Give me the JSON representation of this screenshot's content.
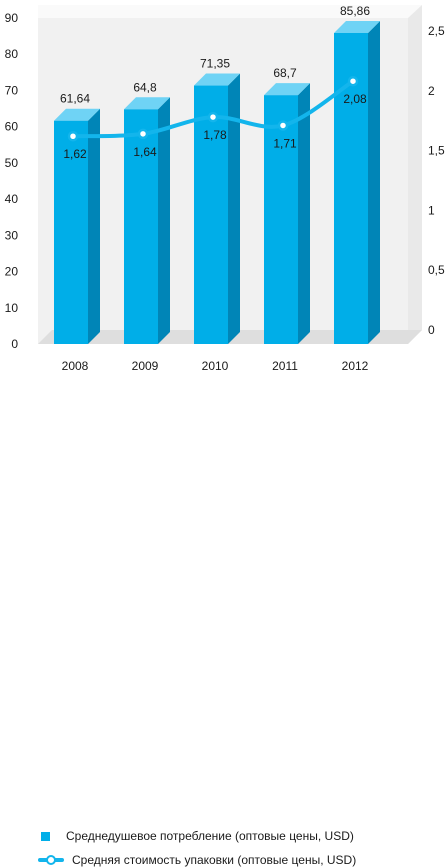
{
  "chart_data": {
    "type": "bar",
    "categories": [
      "2008",
      "2009",
      "2010",
      "2011",
      "2012"
    ],
    "series": [
      {
        "name": "Среднедушевое потребление (оптовые цены, USD)",
        "type": "bar",
        "axis": "left",
        "values": [
          61.64,
          64.8,
          71.35,
          68.7,
          85.86
        ],
        "labels": [
          "61,64",
          "64,8",
          "71,35",
          "68,7",
          "85,86"
        ]
      },
      {
        "name": "Средняя стоимость упаковки (оптовые цены, USD)",
        "type": "line",
        "axis": "right",
        "values": [
          1.62,
          1.64,
          1.78,
          1.71,
          2.08
        ],
        "labels": [
          "1,62",
          "1,64",
          "1,78",
          "1,71",
          "2,08"
        ]
      }
    ],
    "ylim": [
      0,
      90
    ],
    "yticks": [
      "0",
      "10",
      "20",
      "30",
      "40",
      "50",
      "60",
      "70",
      "80",
      "90"
    ],
    "y2lim": [
      0,
      2.5
    ],
    "y2ticks": [
      "0",
      "0,5",
      "1",
      "1,5",
      "2",
      "2,5"
    ],
    "grid": false,
    "legend_position": "bottom",
    "colors": {
      "bar_front": "#00aee8",
      "bar_side": "#0085b7",
      "bar_top": "#6fd3f5",
      "line": "#13b5ec",
      "wall": "#f1f1f1",
      "floor": "#e2e2e2"
    }
  }
}
